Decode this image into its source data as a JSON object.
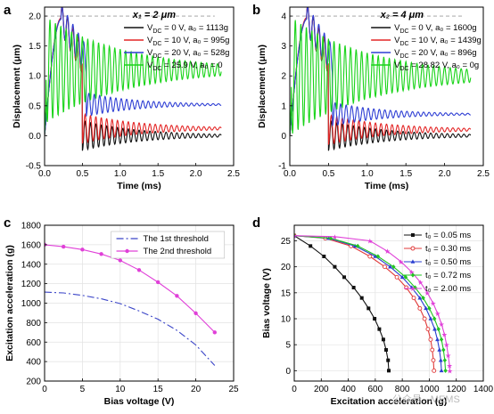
{
  "watermark": "公众号 · MEMS",
  "chart_data": [
    {
      "panel": "a",
      "type": "line",
      "annotation": "x₁ = 2 μm",
      "xlabel": "Time (ms)",
      "ylabel": "Displacement (μm)",
      "xlim": [
        0,
        2.5
      ],
      "ylim": [
        -0.5,
        2.15
      ],
      "xticks": [
        "0.0",
        "0.5",
        "1.0",
        "1.5",
        "2.0",
        "2.5"
      ],
      "yticks": [
        "-0.5",
        "0.0",
        "0.5",
        "1.0",
        "1.5",
        "2.0"
      ],
      "xtick_values": [
        0,
        0.5,
        1.0,
        1.5,
        2.0,
        2.5
      ],
      "ytick_values": [
        -0.5,
        0,
        0.5,
        1.0,
        1.5,
        2.0
      ],
      "reference_line_y": 2.0,
      "legend_position": "top-right",
      "series": [
        {
          "name": "V_DC = 0 V, a₀ = 1113g",
          "color": "#111111",
          "model": "release",
          "rise_peak": 1.95,
          "drop_time": 0.5,
          "settle": 0.0,
          "amp": 0.25,
          "decay": 1.3,
          "freq": 14
        },
        {
          "name": "V_DC = 10 V, a₀ = 995g",
          "color": "#e32626",
          "model": "release",
          "rise_peak": 1.97,
          "drop_time": 0.5,
          "settle": 0.12,
          "amp": 0.25,
          "decay": 1.3,
          "freq": 14
        },
        {
          "name": "V_DC = 20 V, a₀ = 528g",
          "color": "#2f3fd4",
          "model": "release",
          "rise_peak": 1.95,
          "drop_time": 0.55,
          "settle": 0.52,
          "amp": 0.2,
          "decay": 1.5,
          "freq": 14
        },
        {
          "name": "V_DC = 25.9 V, a₀ = 0",
          "color": "#19d419",
          "model": "ring",
          "start": 2.0,
          "settle": 1.1,
          "amp": 0.9,
          "decay": 1.9,
          "freq": 14
        }
      ]
    },
    {
      "panel": "b",
      "type": "line",
      "annotation": "x₂ = 4 μm",
      "xlabel": "Time (ms)",
      "ylabel": "Displacement (μm)",
      "xlim": [
        0,
        2.5
      ],
      "ylim": [
        -1,
        4.3
      ],
      "xticks": [
        "0.0",
        "0.5",
        "1.0",
        "1.5",
        "2.0",
        "2.5"
      ],
      "yticks": [
        "-1",
        "0",
        "1",
        "2",
        "3",
        "4"
      ],
      "xtick_values": [
        0,
        0.5,
        1.0,
        1.5,
        2.0,
        2.5
      ],
      "ytick_values": [
        -1,
        0,
        1,
        2,
        3,
        4
      ],
      "reference_line_y": 4.0,
      "legend_position": "top-right",
      "series": [
        {
          "name": "V_DC = 0 V, a₀ = 1600g",
          "color": "#111111",
          "model": "release",
          "rise_peak": 3.9,
          "drop_time": 0.5,
          "settle": 0.0,
          "amp": 0.5,
          "decay": 1.3,
          "freq": 14
        },
        {
          "name": "V_DC = 10 V, a₀ = 1439g",
          "color": "#e32626",
          "model": "release",
          "rise_peak": 3.95,
          "drop_time": 0.5,
          "settle": 0.2,
          "amp": 0.5,
          "decay": 1.3,
          "freq": 14
        },
        {
          "name": "V_DC = 20 V, a₀ = 896g",
          "color": "#2f3fd4",
          "model": "release",
          "rise_peak": 3.9,
          "drop_time": 0.55,
          "settle": 0.72,
          "amp": 0.4,
          "decay": 1.5,
          "freq": 14
        },
        {
          "name": "V_DC = 28.82 V, a₀ = 0g",
          "color": "#19d419",
          "model": "ring",
          "start": 4.0,
          "settle": 2.0,
          "amp": 1.9,
          "decay": 1.9,
          "freq": 14
        }
      ]
    },
    {
      "panel": "c",
      "type": "line",
      "xlabel": "Bias voltage (V)",
      "ylabel": "Excitation acceleration (g)",
      "xlim": [
        0,
        25
      ],
      "ylim": [
        200,
        1800
      ],
      "xticks": [
        "0",
        "5",
        "10",
        "15",
        "20",
        "25"
      ],
      "yticks": [
        "200",
        "400",
        "600",
        "800",
        "1000",
        "1200",
        "1400",
        "1600",
        "1800"
      ],
      "xtick_values": [
        0,
        5,
        10,
        15,
        20,
        25
      ],
      "ytick_values": [
        200,
        400,
        600,
        800,
        1000,
        1200,
        1400,
        1600,
        1800
      ],
      "grid": true,
      "legend_position": "top-right",
      "series": [
        {
          "name": "The 1st threshold",
          "color": "#3b45c8",
          "style": "dashdot",
          "x": [
            0,
            2.5,
            5,
            7.5,
            10,
            12.5,
            15,
            17.5,
            20,
            22.5
          ],
          "y": [
            1113,
            1105,
            1080,
            1045,
            995,
            920,
            835,
            720,
            570,
            360
          ]
        },
        {
          "name": "The 2nd threshold",
          "color": "#e040d8",
          "style": "solid-marker",
          "x": [
            0,
            2.5,
            5,
            7.5,
            10,
            12.5,
            15,
            17.5,
            20,
            22.5
          ],
          "y": [
            1600,
            1580,
            1550,
            1505,
            1439,
            1340,
            1215,
            1075,
            896,
            700
          ]
        }
      ]
    },
    {
      "panel": "d",
      "type": "line",
      "xlabel": "Excitation acceleration (g)",
      "ylabel": "Bias voltage (V)",
      "xlim": [
        0,
        1400
      ],
      "ylim": [
        -2,
        28
      ],
      "xticks": [
        "0",
        "200",
        "400",
        "600",
        "800",
        "1000",
        "1200",
        "1400"
      ],
      "yticks": [
        "0",
        "5",
        "10",
        "15",
        "20",
        "25"
      ],
      "xtick_values": [
        0,
        200,
        400,
        600,
        800,
        1000,
        1200,
        1400
      ],
      "ytick_values": [
        0,
        5,
        10,
        15,
        20,
        25
      ],
      "grid": true,
      "legend_position": "right",
      "series": [
        {
          "name": "t₀ = 0.05 ms",
          "color": "#111111",
          "marker": "square",
          "y": [
            26,
            24,
            22,
            20,
            18,
            16,
            14,
            12,
            10,
            8,
            6,
            4,
            2,
            0
          ],
          "x": [
            0,
            120,
            220,
            300,
            370,
            440,
            500,
            550,
            595,
            630,
            660,
            680,
            695,
            700
          ]
        },
        {
          "name": "t₀ = 0.30 ms",
          "color": "#e03a3a",
          "marker": "circle-open",
          "y": [
            26,
            25.5,
            24,
            22,
            20,
            18,
            16,
            14,
            12,
            10,
            8,
            6,
            4,
            2,
            0
          ],
          "x": [
            0,
            230,
            420,
            560,
            670,
            760,
            830,
            885,
            930,
            965,
            990,
            1010,
            1022,
            1030,
            1035
          ]
        },
        {
          "name": "t₀ = 0.50 ms",
          "color": "#2a3ed0",
          "marker": "triangle",
          "y": [
            26,
            25.5,
            24,
            22,
            20,
            18,
            16,
            14,
            12,
            10,
            8,
            6,
            4,
            2,
            0
          ],
          "x": [
            0,
            255,
            450,
            600,
            710,
            800,
            870,
            930,
            975,
            1010,
            1040,
            1060,
            1075,
            1085,
            1090
          ]
        },
        {
          "name": "t₀ = 0.72 ms",
          "color": "#22c422",
          "marker": "diamond",
          "y": [
            26,
            25.5,
            24,
            22,
            20,
            18,
            16,
            14,
            12,
            10,
            8,
            6,
            4,
            2,
            0
          ],
          "x": [
            0,
            270,
            470,
            620,
            735,
            825,
            895,
            955,
            1000,
            1038,
            1068,
            1090,
            1105,
            1115,
            1120
          ]
        },
        {
          "name": "t₀ = 2.00 ms",
          "color": "#e040d8",
          "marker": "star",
          "y": [
            26,
            25.8,
            25,
            23,
            21,
            19,
            17,
            15,
            13,
            11,
            9,
            7,
            5,
            3,
            1,
            0
          ],
          "x": [
            0,
            300,
            560,
            690,
            790,
            870,
            935,
            985,
            1028,
            1062,
            1090,
            1112,
            1128,
            1140,
            1150,
            1152
          ]
        }
      ]
    }
  ]
}
